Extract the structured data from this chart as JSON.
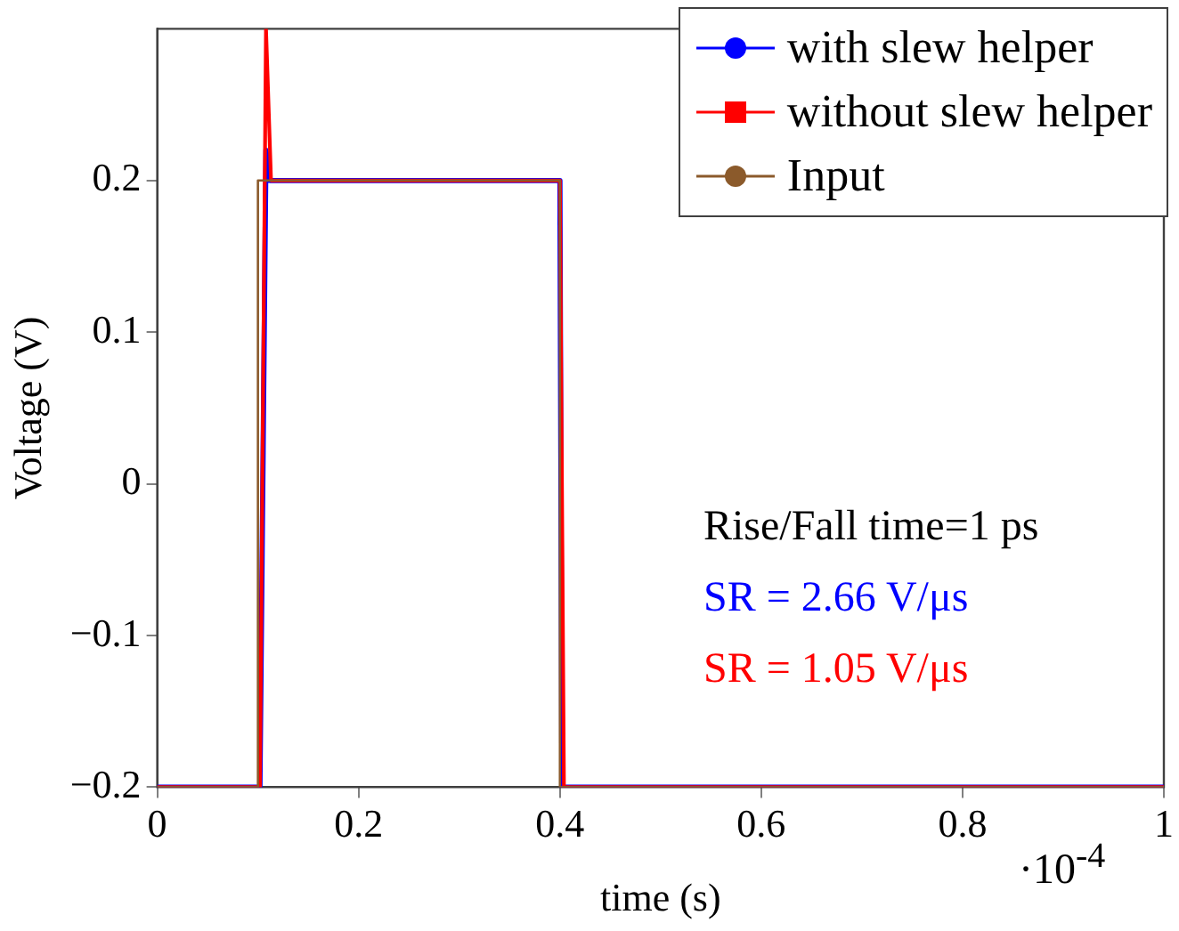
{
  "chart_data": {
    "type": "line",
    "xlabel": "time (s)",
    "ylabel": "Voltage (V)",
    "xlim": [
      0,
      1
    ],
    "xticks": [
      0,
      0.2,
      0.4,
      0.6,
      0.8,
      1
    ],
    "ylim": [
      -0.2,
      0.3
    ],
    "yticks": [
      {
        "value": -0.2,
        "label": "−0.2"
      },
      {
        "value": -0.1,
        "label": "−0.1"
      },
      0,
      0.1,
      0.2
    ],
    "grid": false,
    "legend": "top right",
    "line_style": "solid",
    "series": [
      {
        "name": "with slew helper",
        "color": "#0000ff",
        "x": [
          0,
          0.102,
          0.108,
          0.112,
          0.4,
          0.402,
          1
        ],
        "values": [
          -0.2,
          -0.2,
          0.22,
          0.2,
          0.2,
          -0.2,
          -0.2
        ]
      },
      {
        "name": "without slew helper",
        "color": "#ff0000",
        "x": [
          0,
          0.102,
          0.108,
          0.113,
          0.4,
          0.404,
          1
        ],
        "values": [
          -0.2,
          -0.2,
          0.3,
          0.2,
          0.2,
          -0.2,
          -0.2
        ]
      },
      {
        "name": "Input",
        "color": "#8b5a2b",
        "x": [
          0,
          0.1,
          0.1,
          0.4,
          0.4,
          1
        ],
        "values": [
          -0.2,
          -0.2,
          0.2,
          0.2,
          -0.2,
          -0.2
        ]
      }
    ],
    "annotations": [
      "·10$^{-4}$",
      "Rise/Fall time=1 ps",
      "SR = 2.66 V/μs",
      "SR = 1.05 V/μs"
    ]
  }
}
